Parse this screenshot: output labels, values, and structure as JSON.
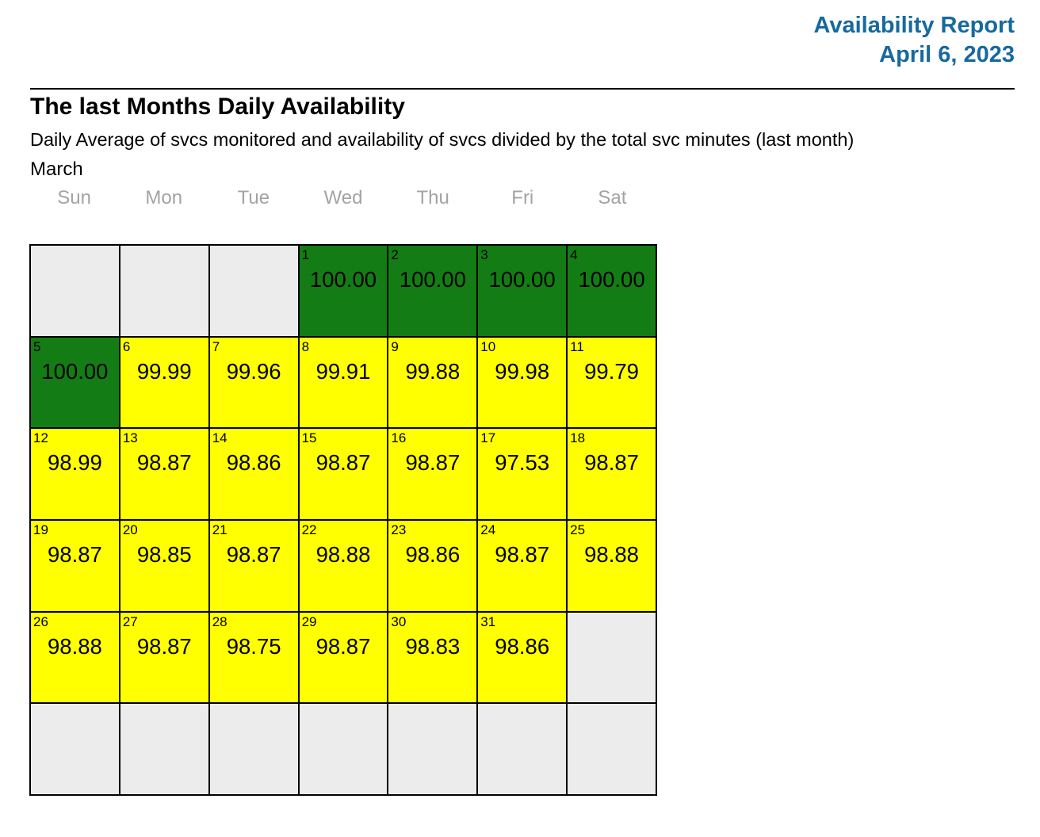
{
  "colors": {
    "accent": "#17699e",
    "green": "#147c14",
    "yellow": "#ffff00",
    "empty_cell": "#ececec",
    "weekday_text": "#a3a3a3",
    "border": "#000000"
  },
  "header": {
    "title": "Availability Report",
    "date": "April 6, 2023"
  },
  "report": {
    "title": "The last Months Daily Availability",
    "subtitle": "Daily Average of svcs monitored and availability of svcs divided by the total svc minutes (last month)",
    "month": "March"
  },
  "calendar": {
    "weekdays": [
      "Sun",
      "Mon",
      "Tue",
      "Wed",
      "Thu",
      "Fri",
      "Sat"
    ],
    "weeks": [
      [
        {
          "day": "",
          "value": "",
          "state": "empty"
        },
        {
          "day": "",
          "value": "",
          "state": "empty"
        },
        {
          "day": "",
          "value": "",
          "state": "empty"
        },
        {
          "day": "1",
          "value": "100.00",
          "state": "green"
        },
        {
          "day": "2",
          "value": "100.00",
          "state": "green"
        },
        {
          "day": "3",
          "value": "100.00",
          "state": "green"
        },
        {
          "day": "4",
          "value": "100.00",
          "state": "green"
        }
      ],
      [
        {
          "day": "5",
          "value": "100.00",
          "state": "green"
        },
        {
          "day": "6",
          "value": "99.99",
          "state": "yellow"
        },
        {
          "day": "7",
          "value": "99.96",
          "state": "yellow"
        },
        {
          "day": "8",
          "value": "99.91",
          "state": "yellow"
        },
        {
          "day": "9",
          "value": "99.88",
          "state": "yellow"
        },
        {
          "day": "10",
          "value": "99.98",
          "state": "yellow"
        },
        {
          "day": "11",
          "value": "99.79",
          "state": "yellow"
        }
      ],
      [
        {
          "day": "12",
          "value": "98.99",
          "state": "yellow"
        },
        {
          "day": "13",
          "value": "98.87",
          "state": "yellow"
        },
        {
          "day": "14",
          "value": "98.86",
          "state": "yellow"
        },
        {
          "day": "15",
          "value": "98.87",
          "state": "yellow"
        },
        {
          "day": "16",
          "value": "98.87",
          "state": "yellow"
        },
        {
          "day": "17",
          "value": "97.53",
          "state": "yellow"
        },
        {
          "day": "18",
          "value": "98.87",
          "state": "yellow"
        }
      ],
      [
        {
          "day": "19",
          "value": "98.87",
          "state": "yellow"
        },
        {
          "day": "20",
          "value": "98.85",
          "state": "yellow"
        },
        {
          "day": "21",
          "value": "98.87",
          "state": "yellow"
        },
        {
          "day": "22",
          "value": "98.88",
          "state": "yellow"
        },
        {
          "day": "23",
          "value": "98.86",
          "state": "yellow"
        },
        {
          "day": "24",
          "value": "98.87",
          "state": "yellow"
        },
        {
          "day": "25",
          "value": "98.88",
          "state": "yellow"
        }
      ],
      [
        {
          "day": "26",
          "value": "98.88",
          "state": "yellow"
        },
        {
          "day": "27",
          "value": "98.87",
          "state": "yellow"
        },
        {
          "day": "28",
          "value": "98.75",
          "state": "yellow"
        },
        {
          "day": "29",
          "value": "98.87",
          "state": "yellow"
        },
        {
          "day": "30",
          "value": "98.83",
          "state": "yellow"
        },
        {
          "day": "31",
          "value": "98.86",
          "state": "yellow"
        },
        {
          "day": "",
          "value": "",
          "state": "empty"
        }
      ],
      [
        {
          "day": "",
          "value": "",
          "state": "empty"
        },
        {
          "day": "",
          "value": "",
          "state": "empty"
        },
        {
          "day": "",
          "value": "",
          "state": "empty"
        },
        {
          "day": "",
          "value": "",
          "state": "empty"
        },
        {
          "day": "",
          "value": "",
          "state": "empty"
        },
        {
          "day": "",
          "value": "",
          "state": "empty"
        },
        {
          "day": "",
          "value": "",
          "state": "empty"
        }
      ]
    ]
  }
}
